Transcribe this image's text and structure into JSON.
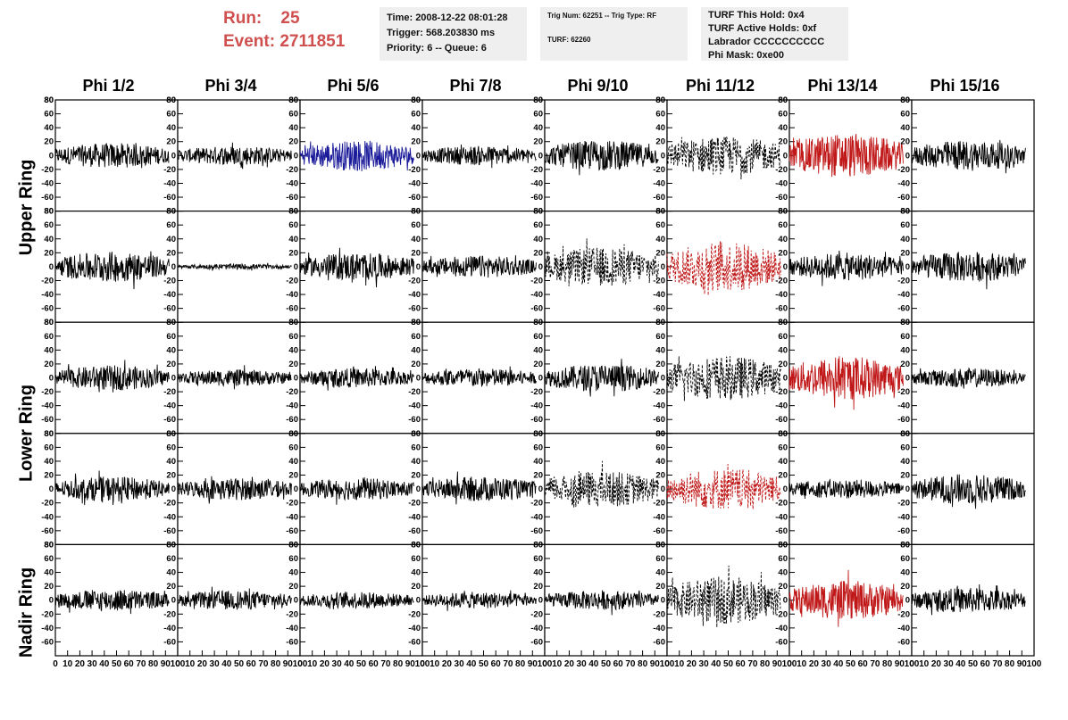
{
  "header": {
    "run_label": "Run:",
    "run_value": "25",
    "event_label": "Event:",
    "event_value": "2711851"
  },
  "info_time": {
    "time": "Time: 2008-12-22 08:01:28",
    "trigger": "Trigger: 568.203830 ms",
    "priority": "Priority: 6 -- Queue: 6"
  },
  "info_trig": {
    "trig": "Trig Num: 62251 -- Trig Type: RF",
    "turf": "TURF: 62260"
  },
  "info_turf": {
    "this_hold": "TURF This Hold: 0x4",
    "active_holds": "TURF Active Holds: 0xf",
    "labrador": "Labrador CCCCCCCCCC",
    "phi_mask": "Phi Mask: 0xe00"
  },
  "columns": [
    "Phi 1/2",
    "Phi 3/4",
    "Phi 5/6",
    "Phi 7/8",
    "Phi 9/10",
    "Phi 11/12",
    "Phi 13/14",
    "Phi 15/16"
  ],
  "rings": {
    "upper": "Upper Ring",
    "lower": "Lower Ring",
    "nadir": "Nadir Ring"
  },
  "colors": {
    "header_red": "#d05050",
    "trace_black": "#000000",
    "trace_blue": "#1a1a9a",
    "trace_red": "#c01818",
    "info_bg": "#efefef"
  },
  "chart_data": {
    "type": "line",
    "xlim": [
      0,
      100
    ],
    "ylim": [
      -80,
      80
    ],
    "x_ticks": [
      0,
      10,
      20,
      30,
      40,
      50,
      60,
      70,
      80,
      90,
      100
    ],
    "y_ticks": [
      -60,
      -40,
      -20,
      0,
      20,
      40,
      60,
      80
    ],
    "row_count": 5,
    "panels": [
      [
        {
          "amp": 18,
          "color": "black",
          "style": "solid"
        },
        {
          "amp": 14,
          "color": "black",
          "style": "solid"
        },
        {
          "amp": 22,
          "color": "blue",
          "style": "solid"
        },
        {
          "amp": 14,
          "color": "black",
          "style": "solid"
        },
        {
          "amp": 22,
          "color": "black",
          "style": "solid"
        },
        {
          "amp": 28,
          "color": "black",
          "style": "dashed"
        },
        {
          "amp": 32,
          "color": "red",
          "style": "solid"
        },
        {
          "amp": 22,
          "color": "black",
          "style": "solid"
        }
      ],
      [
        {
          "amp": 22,
          "color": "black",
          "style": "solid"
        },
        {
          "amp": 4,
          "color": "black",
          "style": "solid"
        },
        {
          "amp": 20,
          "color": "black",
          "style": "solid"
        },
        {
          "amp": 16,
          "color": "black",
          "style": "solid"
        },
        {
          "amp": 28,
          "color": "black",
          "style": "dashed"
        },
        {
          "amp": 36,
          "color": "red",
          "style": "dashed"
        },
        {
          "amp": 20,
          "color": "black",
          "style": "solid"
        },
        {
          "amp": 22,
          "color": "black",
          "style": "solid"
        }
      ],
      [
        {
          "amp": 18,
          "color": "black",
          "style": "solid"
        },
        {
          "amp": 12,
          "color": "black",
          "style": "solid"
        },
        {
          "amp": 14,
          "color": "black",
          "style": "solid"
        },
        {
          "amp": 14,
          "color": "black",
          "style": "solid"
        },
        {
          "amp": 20,
          "color": "black",
          "style": "solid"
        },
        {
          "amp": 32,
          "color": "black",
          "style": "dashed"
        },
        {
          "amp": 32,
          "color": "red",
          "style": "solid"
        },
        {
          "amp": 14,
          "color": "black",
          "style": "solid"
        }
      ],
      [
        {
          "amp": 18,
          "color": "black",
          "style": "solid"
        },
        {
          "amp": 16,
          "color": "black",
          "style": "solid"
        },
        {
          "amp": 16,
          "color": "black",
          "style": "solid"
        },
        {
          "amp": 18,
          "color": "black",
          "style": "solid"
        },
        {
          "amp": 26,
          "color": "black",
          "style": "dashed"
        },
        {
          "amp": 30,
          "color": "red",
          "style": "dashed"
        },
        {
          "amp": 14,
          "color": "black",
          "style": "solid"
        },
        {
          "amp": 22,
          "color": "black",
          "style": "solid"
        }
      ],
      [
        {
          "amp": 16,
          "color": "black",
          "style": "solid"
        },
        {
          "amp": 14,
          "color": "black",
          "style": "solid"
        },
        {
          "amp": 12,
          "color": "black",
          "style": "solid"
        },
        {
          "amp": 12,
          "color": "black",
          "style": "solid"
        },
        {
          "amp": 14,
          "color": "black",
          "style": "solid"
        },
        {
          "amp": 34,
          "color": "black",
          "style": "dashed"
        },
        {
          "amp": 28,
          "color": "red",
          "style": "solid"
        },
        {
          "amp": 18,
          "color": "black",
          "style": "solid"
        }
      ]
    ]
  }
}
